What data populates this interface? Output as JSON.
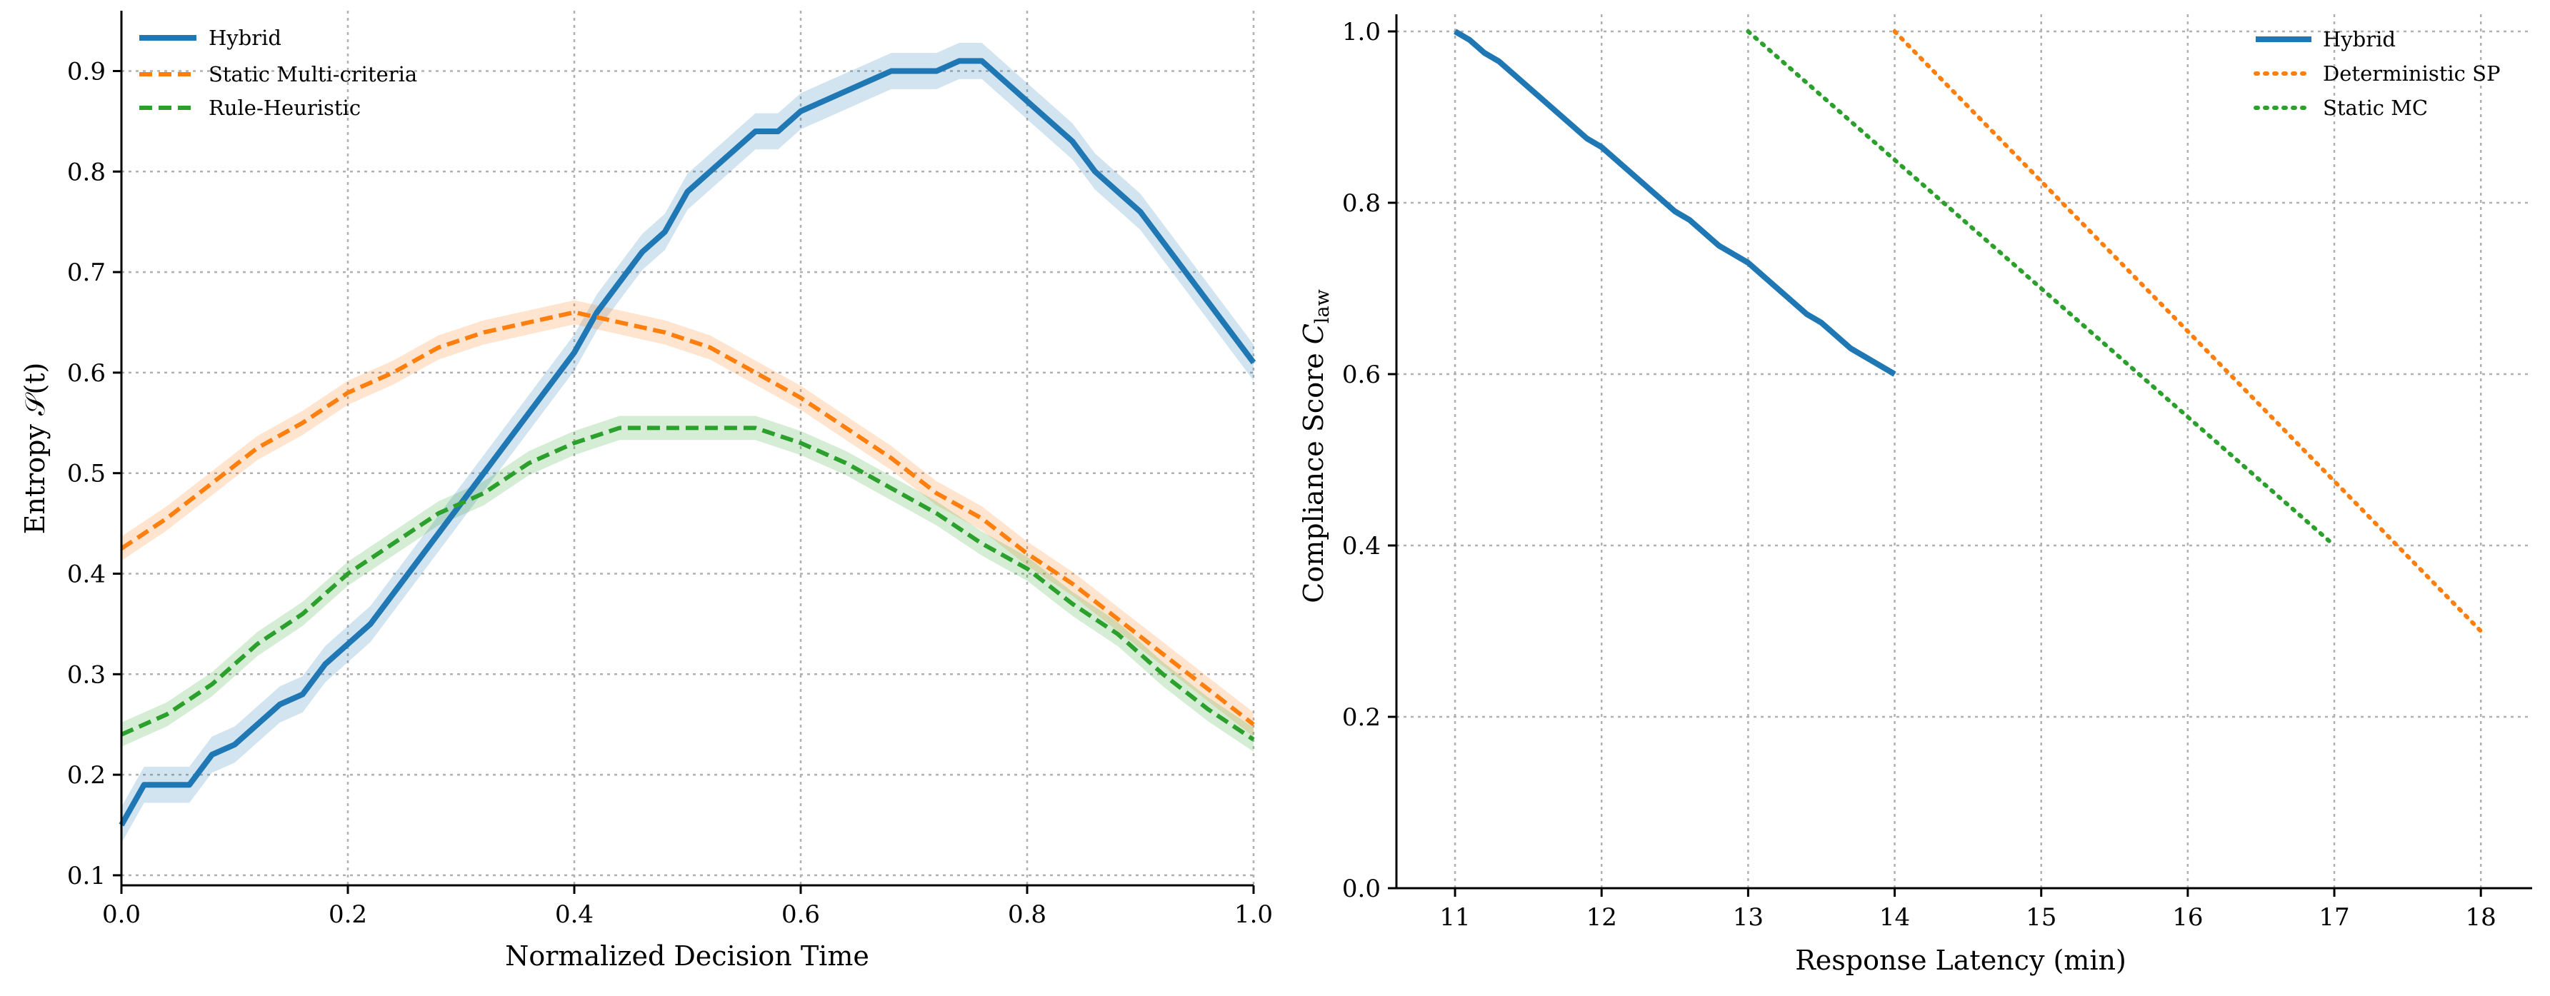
{
  "chart_data": [
    {
      "type": "line",
      "xlabel": "Normalized Decision Time",
      "ylabel": "Entropy 𝒮(t)",
      "xlim": [
        0.0,
        1.0
      ],
      "ylim": [
        0.09,
        0.96
      ],
      "xticks": [
        0.0,
        0.2,
        0.4,
        0.6,
        0.8,
        1.0
      ],
      "xtick_labels": [
        "0.0",
        "0.2",
        "0.4",
        "0.6",
        "0.8",
        "1.0"
      ],
      "yticks": [
        0.1,
        0.2,
        0.3,
        0.4,
        0.5,
        0.6,
        0.7,
        0.8,
        0.9
      ],
      "ytick_labels": [
        "0.1",
        "0.2",
        "0.3",
        "0.4",
        "0.5",
        "0.6",
        "0.7",
        "0.8",
        "0.9"
      ],
      "grid": true,
      "legend_position": "top-left",
      "series": [
        {
          "name": "Hybrid",
          "color": "#1f77b4",
          "style": "solid",
          "band": 0.018,
          "x": [
            0.0,
            0.02,
            0.04,
            0.06,
            0.08,
            0.1,
            0.12,
            0.14,
            0.16,
            0.18,
            0.2,
            0.22,
            0.24,
            0.26,
            0.28,
            0.3,
            0.32,
            0.34,
            0.36,
            0.38,
            0.4,
            0.42,
            0.44,
            0.46,
            0.48,
            0.5,
            0.52,
            0.54,
            0.56,
            0.58,
            0.6,
            0.62,
            0.64,
            0.66,
            0.68,
            0.7,
            0.72,
            0.74,
            0.76,
            0.78,
            0.8,
            0.82,
            0.84,
            0.86,
            0.88,
            0.9,
            0.92,
            0.94,
            0.96,
            0.98,
            1.0
          ],
          "values": [
            0.15,
            0.19,
            0.19,
            0.19,
            0.22,
            0.23,
            0.25,
            0.27,
            0.28,
            0.31,
            0.33,
            0.35,
            0.38,
            0.41,
            0.44,
            0.47,
            0.5,
            0.53,
            0.56,
            0.59,
            0.62,
            0.66,
            0.69,
            0.72,
            0.74,
            0.78,
            0.8,
            0.82,
            0.84,
            0.84,
            0.86,
            0.87,
            0.88,
            0.89,
            0.9,
            0.9,
            0.9,
            0.91,
            0.91,
            0.89,
            0.87,
            0.85,
            0.83,
            0.8,
            0.78,
            0.76,
            0.73,
            0.7,
            0.67,
            0.64,
            0.61
          ]
        },
        {
          "name": "Static Multi-criteria",
          "color": "#ff7f0e",
          "style": "dashed",
          "band": 0.012,
          "x": [
            0.0,
            0.04,
            0.08,
            0.12,
            0.16,
            0.2,
            0.24,
            0.28,
            0.32,
            0.36,
            0.4,
            0.44,
            0.48,
            0.52,
            0.56,
            0.6,
            0.64,
            0.68,
            0.72,
            0.76,
            0.8,
            0.84,
            0.88,
            0.92,
            0.96,
            1.0
          ],
          "values": [
            0.425,
            0.455,
            0.49,
            0.525,
            0.55,
            0.58,
            0.6,
            0.625,
            0.64,
            0.65,
            0.66,
            0.65,
            0.64,
            0.625,
            0.6,
            0.575,
            0.545,
            0.515,
            0.48,
            0.455,
            0.42,
            0.39,
            0.355,
            0.32,
            0.285,
            0.25
          ]
        },
        {
          "name": "Rule-Heuristic",
          "color": "#2ca02c",
          "style": "dashed",
          "band": 0.012,
          "x": [
            0.0,
            0.04,
            0.08,
            0.12,
            0.16,
            0.2,
            0.24,
            0.28,
            0.32,
            0.36,
            0.4,
            0.44,
            0.48,
            0.52,
            0.56,
            0.6,
            0.64,
            0.68,
            0.72,
            0.76,
            0.8,
            0.84,
            0.88,
            0.92,
            0.96,
            1.0
          ],
          "values": [
            0.24,
            0.26,
            0.29,
            0.33,
            0.36,
            0.4,
            0.43,
            0.46,
            0.48,
            0.51,
            0.53,
            0.545,
            0.545,
            0.545,
            0.545,
            0.53,
            0.51,
            0.485,
            0.46,
            0.43,
            0.405,
            0.37,
            0.34,
            0.3,
            0.265,
            0.235
          ]
        }
      ]
    },
    {
      "type": "line",
      "xlabel": "Response Latency (min)",
      "ylabel": "Compliance Score ",
      "ylabel_symbol": "C",
      "ylabel_subscript": "law",
      "xlim": [
        10.6,
        18.35
      ],
      "ylim": [
        0.0,
        1.02
      ],
      "xticks": [
        11,
        12,
        13,
        14,
        15,
        16,
        17,
        18
      ],
      "xtick_labels": [
        "11",
        "12",
        "13",
        "14",
        "15",
        "16",
        "17",
        "18"
      ],
      "yticks": [
        0.0,
        0.2,
        0.4,
        0.6,
        0.8,
        1.0
      ],
      "ytick_labels": [
        "0.0",
        "0.2",
        "0.4",
        "0.6",
        "0.8",
        "1.0"
      ],
      "grid": true,
      "legend_position": "top-right",
      "series": [
        {
          "name": "Hybrid",
          "color": "#1f77b4",
          "style": "solid",
          "x": [
            11.0,
            11.1,
            11.2,
            11.3,
            11.4,
            11.5,
            11.6,
            11.7,
            11.8,
            11.9,
            12.0,
            12.1,
            12.2,
            12.3,
            12.4,
            12.5,
            12.6,
            12.7,
            12.8,
            12.9,
            13.0,
            13.1,
            13.2,
            13.3,
            13.4,
            13.5,
            13.6,
            13.7,
            13.8,
            13.9,
            14.0
          ],
          "values": [
            1.0,
            0.99,
            0.975,
            0.965,
            0.95,
            0.935,
            0.92,
            0.905,
            0.89,
            0.875,
            0.865,
            0.85,
            0.835,
            0.82,
            0.805,
            0.79,
            0.78,
            0.765,
            0.75,
            0.74,
            0.73,
            0.715,
            0.7,
            0.685,
            0.67,
            0.66,
            0.645,
            0.63,
            0.62,
            0.61,
            0.6
          ]
        },
        {
          "name": "Deterministic SP",
          "color": "#ff7f0e",
          "style": "dotted",
          "x": [
            14.0,
            18.0
          ],
          "values": [
            1.0,
            0.3
          ]
        },
        {
          "name": "Static MC",
          "color": "#2ca02c",
          "style": "dotted",
          "x": [
            13.0,
            17.0
          ],
          "values": [
            1.0,
            0.4
          ]
        }
      ]
    }
  ]
}
